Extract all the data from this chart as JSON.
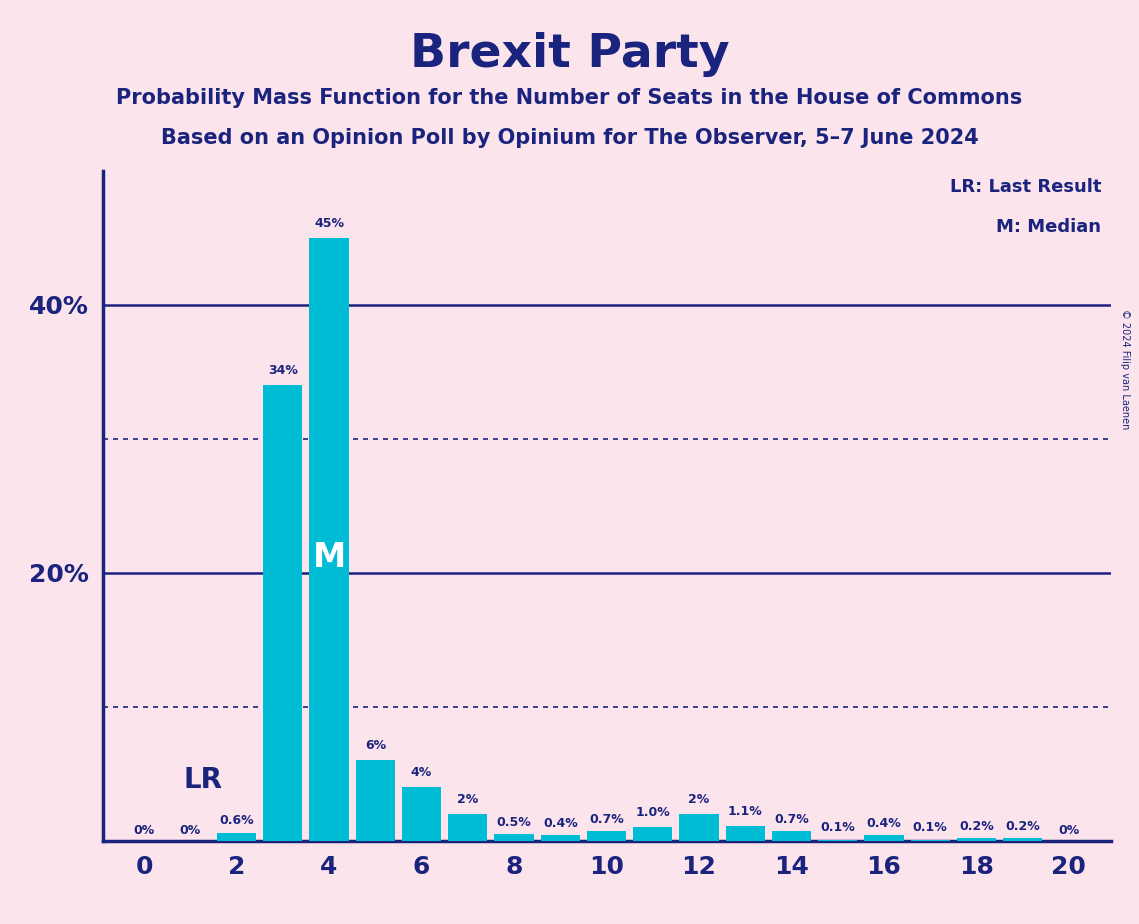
{
  "title": "Brexit Party",
  "subtitle1": "Probability Mass Function for the Number of Seats in the House of Commons",
  "subtitle2": "Based on an Opinion Poll by Opinium for The Observer, 5–7 June 2024",
  "background_color": "#fce4ec",
  "bar_color": "#00bcd4",
  "text_color": "#1a237e",
  "seats": [
    0,
    1,
    2,
    3,
    4,
    5,
    6,
    7,
    8,
    9,
    10,
    11,
    12,
    13,
    14,
    15,
    16,
    17,
    18,
    19,
    20
  ],
  "probabilities": [
    0.0,
    0.0,
    0.6,
    34.0,
    45.0,
    6.0,
    4.0,
    2.0,
    0.5,
    0.4,
    0.7,
    1.0,
    2.0,
    1.1,
    0.7,
    0.1,
    0.4,
    0.1,
    0.2,
    0.2,
    0.0
  ],
  "labels": [
    "0%",
    "0%",
    "0.6%",
    "34%",
    "45%",
    "6%",
    "4%",
    "2%",
    "0.5%",
    "0.4%",
    "0.7%",
    "1.0%",
    "2%",
    "1.1%",
    "0.7%",
    "0.1%",
    "0.4%",
    "0.1%",
    "0.2%",
    "0.2%",
    "0%"
  ],
  "median_seat": 4,
  "lr_seat": 0,
  "ylim": [
    0,
    50
  ],
  "solid_yticks": [
    20,
    40
  ],
  "dotted_yticks": [
    10,
    30
  ],
  "ytick_labels": {
    "20": "20%",
    "40": "40%"
  },
  "legend_lr": "LR: Last Result",
  "legend_m": "M: Median",
  "copyright": "© 2024 Filip van Laenen"
}
